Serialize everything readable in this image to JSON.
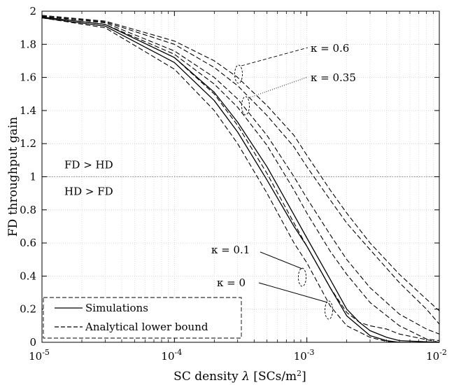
{
  "chart_data": {
    "type": "line",
    "xlabel": "SC density λ [SCs/m²]",
    "ylabel": "FD throughput gain",
    "xscale": "log",
    "xlim": [
      1e-05,
      0.01
    ],
    "ylim": [
      0,
      2
    ],
    "grid": true,
    "x_ticks": [
      {
        "value": 1e-05,
        "base": "10",
        "exp": "-5"
      },
      {
        "value": 0.0001,
        "base": "10",
        "exp": "-4"
      },
      {
        "value": 0.001,
        "base": "10",
        "exp": "-3"
      },
      {
        "value": 0.01,
        "base": "10",
        "exp": "-2"
      }
    ],
    "y_ticks": [
      {
        "value": 0,
        "label": "0"
      },
      {
        "value": 0.2,
        "label": "0.2"
      },
      {
        "value": 0.4,
        "label": "0.4"
      },
      {
        "value": 0.6,
        "label": "0.6"
      },
      {
        "value": 0.8,
        "label": "0.8"
      },
      {
        "value": 1,
        "label": "1"
      },
      {
        "value": 1.2,
        "label": "1.2"
      },
      {
        "value": 1.4,
        "label": "1.4"
      },
      {
        "value": 1.6,
        "label": "1.6"
      },
      {
        "value": 1.8,
        "label": "1.8"
      },
      {
        "value": 2,
        "label": "2"
      }
    ],
    "reference_line": {
      "y": 1,
      "label_above": "FD > HD",
      "label_below": "HD > FD"
    },
    "legend": {
      "position": "bottom-left",
      "entries": [
        {
          "label": "Simulations",
          "style": "solid"
        },
        {
          "label": "Analytical lower bound",
          "style": "dashed"
        }
      ]
    },
    "annotations": [
      {
        "text": "κ = 0.6"
      },
      {
        "text": "κ = 0.35"
      },
      {
        "text": "κ = 0.1"
      },
      {
        "text": "κ = 0"
      }
    ],
    "series": [
      {
        "style": "dashed",
        "x": [
          1e-05,
          3e-05,
          0.0001,
          0.0002,
          0.0003,
          0.0005,
          0.0008,
          0.001,
          0.0015,
          0.002,
          0.003,
          0.005,
          0.008,
          0.01
        ],
        "y": [
          1.975,
          1.94,
          1.82,
          1.7,
          1.6,
          1.43,
          1.25,
          1.13,
          0.92,
          0.78,
          0.6,
          0.41,
          0.26,
          0.19
        ]
      },
      {
        "style": "dashed",
        "x": [
          1e-05,
          3e-05,
          0.0001,
          0.0002,
          0.0003,
          0.0005,
          0.0008,
          0.001,
          0.0015,
          0.002,
          0.003,
          0.005,
          0.008,
          0.01
        ],
        "y": [
          1.97,
          1.935,
          1.8,
          1.66,
          1.55,
          1.37,
          1.18,
          1.06,
          0.86,
          0.72,
          0.56,
          0.36,
          0.2,
          0.11
        ]
      },
      {
        "style": "dashed",
        "x": [
          1e-05,
          3e-05,
          0.0001,
          0.0002,
          0.0003,
          0.0005,
          0.0008,
          0.001,
          0.0015,
          0.002,
          0.003,
          0.005,
          0.008,
          0.01
        ],
        "y": [
          1.97,
          1.93,
          1.76,
          1.6,
          1.47,
          1.25,
          1.0,
          0.87,
          0.65,
          0.5,
          0.33,
          0.17,
          0.08,
          0.05
        ]
      },
      {
        "style": "dashed",
        "x": [
          1e-05,
          3e-05,
          0.0001,
          0.0002,
          0.0003,
          0.0005,
          0.0008,
          0.001,
          0.0015,
          0.002,
          0.003,
          0.005,
          0.008,
          0.01
        ],
        "y": [
          1.965,
          1.92,
          1.74,
          1.56,
          1.42,
          1.19,
          0.92,
          0.78,
          0.55,
          0.41,
          0.24,
          0.1,
          0.02,
          0.01
        ]
      },
      {
        "style": "dashed",
        "x": [
          1e-05,
          3e-05,
          0.0001,
          0.0002,
          0.0003,
          0.0005,
          0.0008,
          0.001,
          0.0015,
          0.002,
          0.0025,
          0.003,
          0.004,
          0.005,
          0.01
        ],
        "y": [
          1.965,
          1.92,
          1.72,
          1.5,
          1.31,
          1.02,
          0.72,
          0.58,
          0.33,
          0.18,
          0.12,
          0.1,
          0.08,
          0.05,
          0.0
        ]
      },
      {
        "style": "solid",
        "x": [
          1e-05,
          3e-05,
          0.0001,
          0.0002,
          0.0003,
          0.0005,
          0.0008,
          0.001,
          0.0015,
          0.002,
          0.0025,
          0.003,
          0.004,
          0.005,
          0.01
        ],
        "y": [
          1.965,
          1.92,
          1.72,
          1.51,
          1.33,
          1.06,
          0.77,
          0.63,
          0.38,
          0.2,
          0.12,
          0.07,
          0.03,
          0.01,
          0.0
        ]
      },
      {
        "style": "dashed",
        "x": [
          1e-05,
          3e-05,
          0.0001,
          0.0002,
          0.0003,
          0.0005,
          0.0008,
          0.001,
          0.0015,
          0.002,
          0.003,
          0.004,
          0.005,
          0.01
        ],
        "y": [
          1.96,
          1.9,
          1.65,
          1.4,
          1.2,
          0.9,
          0.6,
          0.48,
          0.22,
          0.1,
          0.03,
          0.005,
          0.0,
          0.0
        ]
      },
      {
        "style": "solid",
        "x": [
          1e-05,
          3e-05,
          0.0001,
          0.0002,
          0.0003,
          0.0005,
          0.0008,
          0.001,
          0.0015,
          0.002,
          0.003,
          0.004,
          0.005,
          0.01
        ],
        "y": [
          1.96,
          1.91,
          1.69,
          1.46,
          1.27,
          0.98,
          0.7,
          0.58,
          0.33,
          0.16,
          0.04,
          0.01,
          0.0,
          0.0
        ]
      }
    ]
  }
}
